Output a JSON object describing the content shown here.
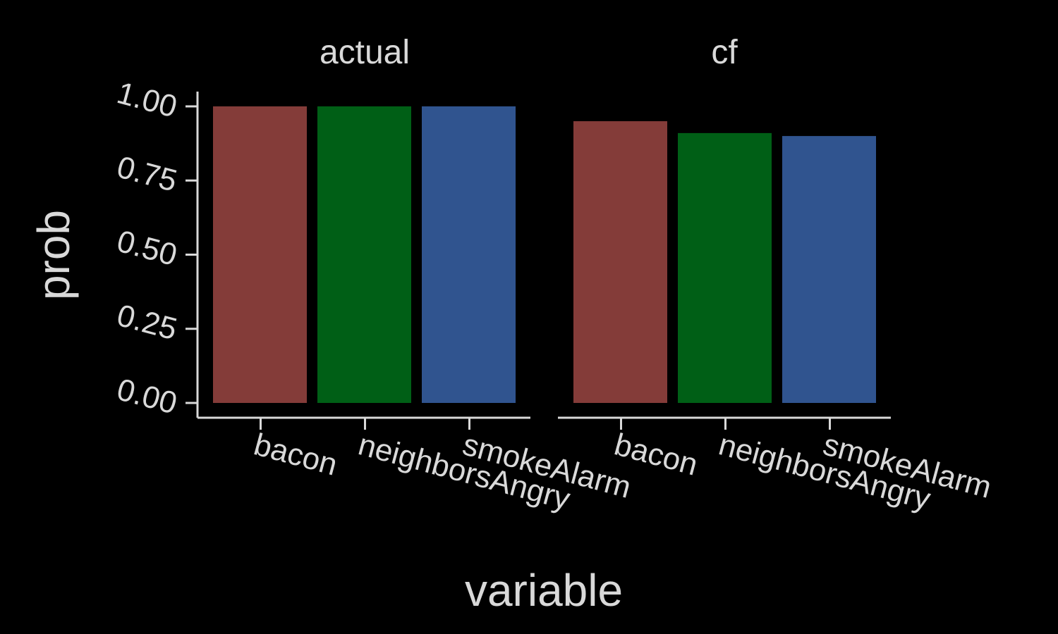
{
  "chart_data": {
    "type": "bar",
    "xlabel": "variable",
    "ylabel": "prob",
    "ylim": [
      0,
      1
    ],
    "yticks": [
      "0.00",
      "0.25",
      "0.50",
      "0.75",
      "1.00"
    ],
    "grid": false,
    "legend": "none",
    "panels": [
      {
        "title": "actual",
        "categories": [
          "bacon",
          "neighborsAngry",
          "smokeAlarm"
        ],
        "values": [
          1.0,
          1.0,
          1.0
        ]
      },
      {
        "title": "cf",
        "categories": [
          "bacon",
          "neighborsAngry",
          "smokeAlarm"
        ],
        "values": [
          0.95,
          0.91,
          0.9
        ]
      }
    ],
    "colors": {
      "bacon": "#843c39",
      "neighborsAngry": "#005f16",
      "smokeAlarm": "#30548f",
      "text": "#d9d9d9",
      "background": "#000000"
    }
  }
}
